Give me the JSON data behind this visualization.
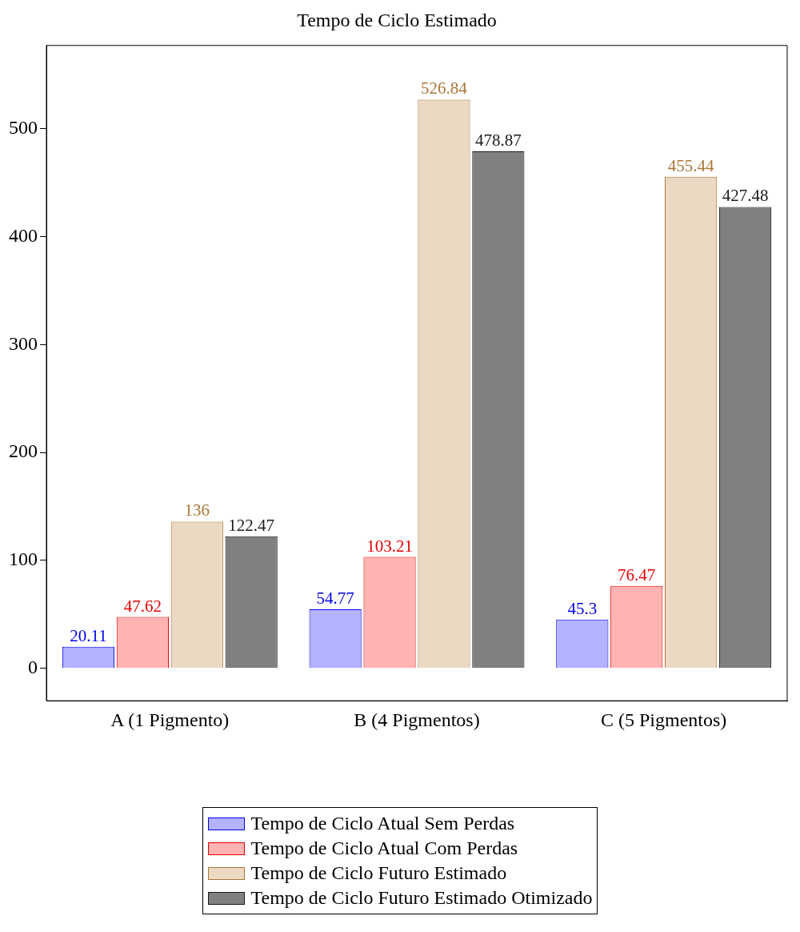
{
  "chart_data": {
    "type": "bar",
    "title": "Tempo de Ciclo Estimado",
    "categories": [
      "A (1 Pigmento)",
      "B (4 Pigmentos)",
      "C (5 Pigmentos)"
    ],
    "series": [
      {
        "name": "Tempo de Ciclo Atual Sem Perdas",
        "color": "#b3b3ff",
        "values": [
          20.11,
          54.77,
          45.3
        ]
      },
      {
        "name": "Tempo de Ciclo Atual Com Perdas",
        "color": "#ffb3b3",
        "values": [
          47.62,
          103.21,
          76.47
        ]
      },
      {
        "name": "Tempo de Ciclo Futuro Estimado",
        "color": "#ebd9c4",
        "values": [
          136,
          526.84,
          455.44
        ]
      },
      {
        "name": "Tempo de Ciclo Futuro Estimado Otimizado",
        "color": "#808080",
        "values": [
          122.47,
          478.87,
          427.48
        ]
      }
    ],
    "ylim": [
      -30,
      577
    ],
    "yticks": [
      0,
      100,
      200,
      300,
      400,
      500
    ],
    "grid": false,
    "legend": "bottom",
    "data_labels": true
  }
}
